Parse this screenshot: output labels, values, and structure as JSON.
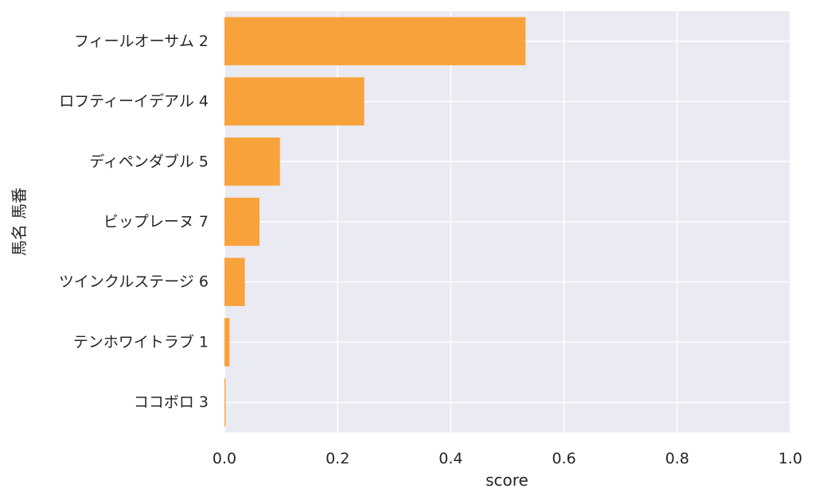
{
  "chart_data": {
    "type": "bar",
    "orientation": "horizontal",
    "categories": [
      "フィールオーサム 2",
      "ロフティーイデアル 4",
      "ディペンダブル 5",
      "ビップレーヌ 7",
      "ツインクルステージ 6",
      "テンホワイトラブ 1",
      "ココボロ 3"
    ],
    "values": [
      0.532,
      0.247,
      0.098,
      0.062,
      0.036,
      0.009,
      0.002
    ],
    "xlabel": "score",
    "ylabel": "馬名 馬番",
    "xlim": [
      0.0,
      1.0
    ],
    "xticks": [
      "0.0",
      "0.2",
      "0.4",
      "0.6",
      "0.8",
      "1.0"
    ],
    "grid": true,
    "bar_color": "#f99b2c",
    "plot_background": "#eaeaf2"
  }
}
